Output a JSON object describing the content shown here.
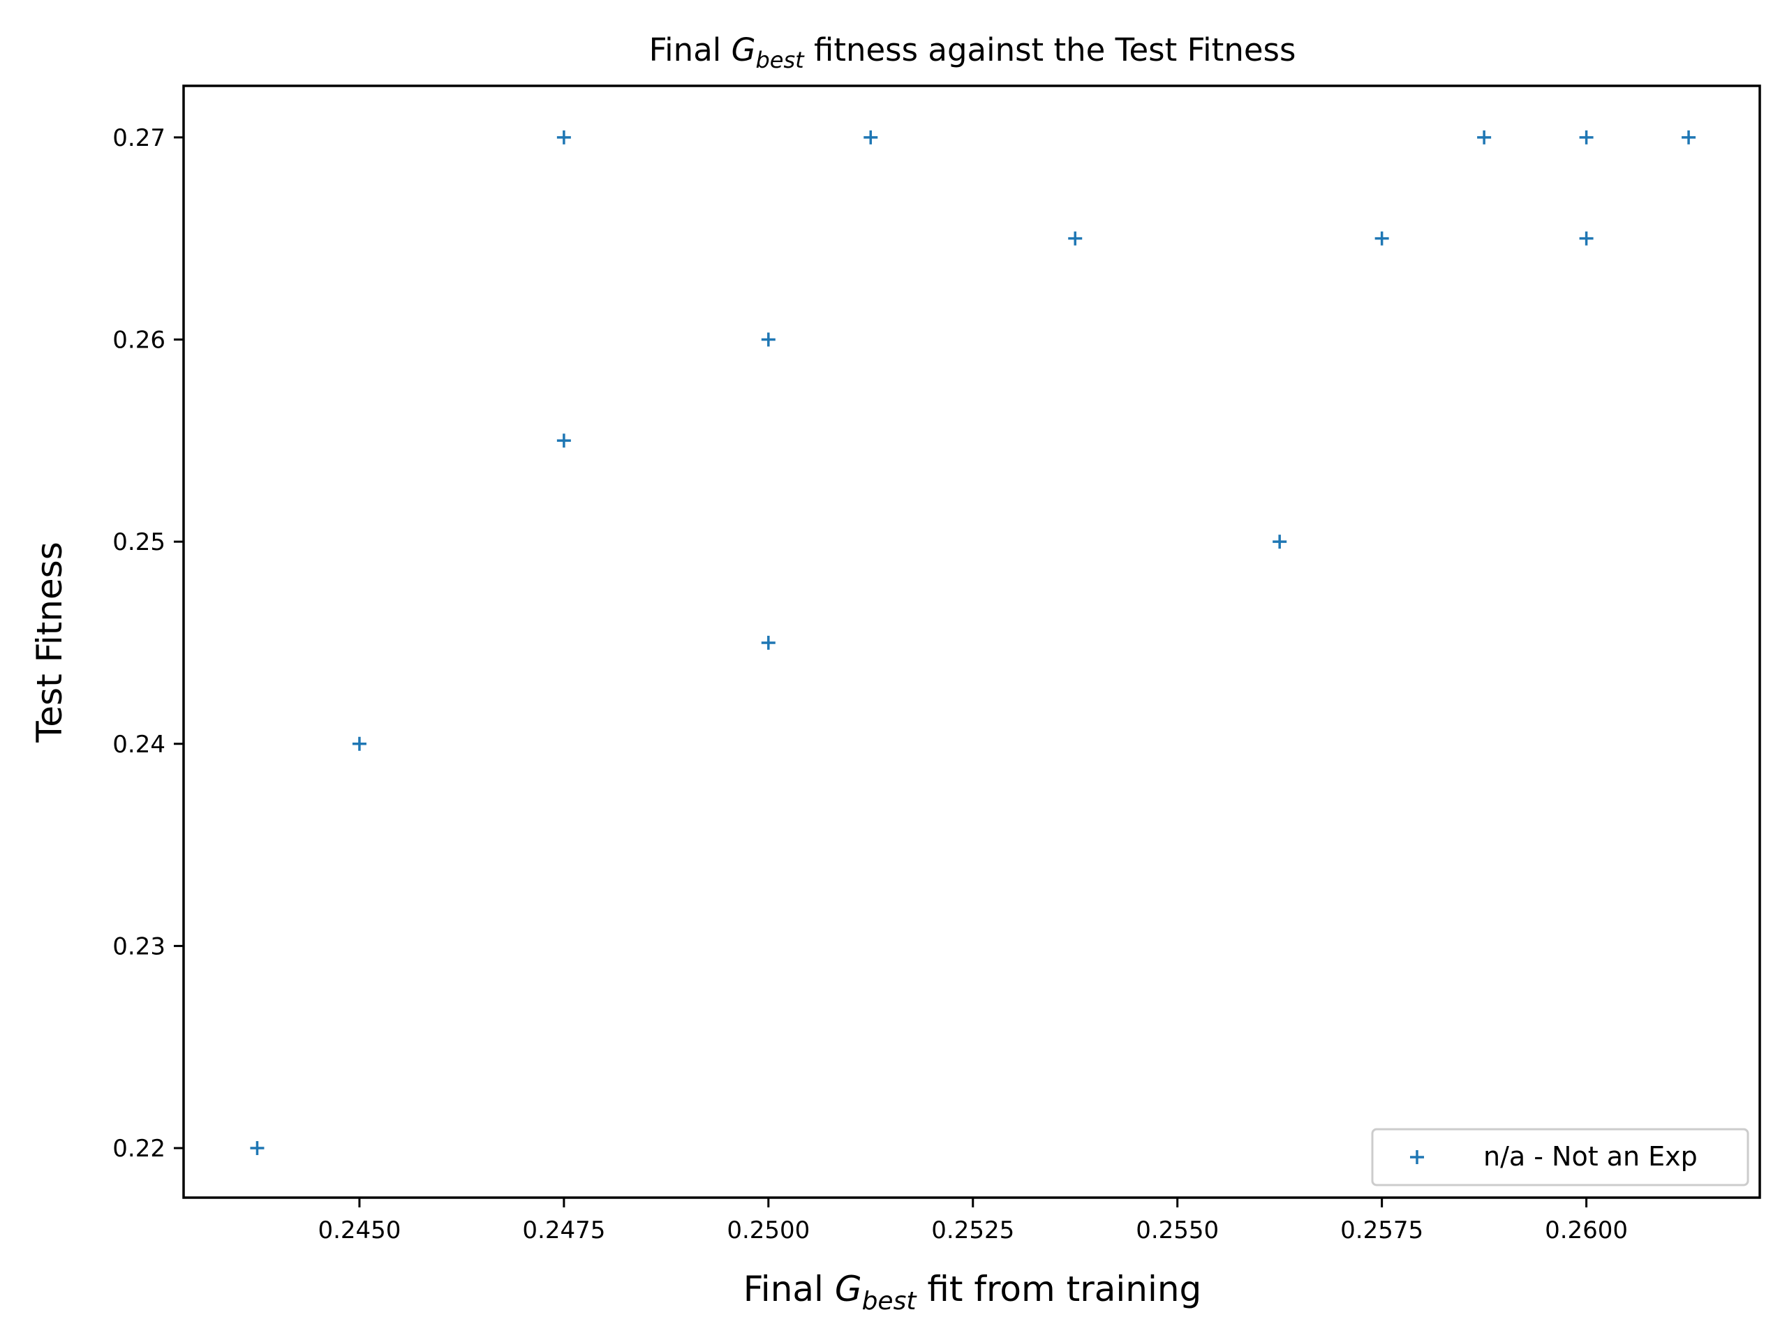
{
  "chart_data": {
    "type": "scatter",
    "title": {
      "prefix": "Final ",
      "symbol": "G",
      "subscript": "best",
      "suffix": " fitness against the Test Fitness"
    },
    "xlabel": {
      "prefix": "Final ",
      "symbol": "G",
      "subscript": "best",
      "suffix": " fit from training"
    },
    "ylabel": "Test Fitness",
    "xlim": [
      0.24285,
      0.26212
    ],
    "ylim": [
      0.21755,
      0.27255
    ],
    "x_ticks": [
      "0.2450",
      "0.2475",
      "0.2500",
      "0.2525",
      "0.2550",
      "0.2575",
      "0.2600"
    ],
    "x_tick_values": [
      0.245,
      0.2475,
      0.25,
      0.2525,
      0.255,
      0.2575,
      0.26
    ],
    "y_ticks": [
      "0.22",
      "0.23",
      "0.24",
      "0.25",
      "0.26",
      "0.27"
    ],
    "y_tick_values": [
      0.22,
      0.23,
      0.24,
      0.25,
      0.26,
      0.27
    ],
    "grid": false,
    "legend_position": "lower right",
    "series": [
      {
        "name": "n/a - Not an Exp",
        "marker": "+",
        "color": "#1f77b4",
        "points": [
          {
            "x": 0.24375,
            "y": 0.22
          },
          {
            "x": 0.245,
            "y": 0.24
          },
          {
            "x": 0.2475,
            "y": 0.27
          },
          {
            "x": 0.2475,
            "y": 0.255
          },
          {
            "x": 0.25,
            "y": 0.26
          },
          {
            "x": 0.25,
            "y": 0.245
          },
          {
            "x": 0.25125,
            "y": 0.27
          },
          {
            "x": 0.25375,
            "y": 0.265
          },
          {
            "x": 0.25625,
            "y": 0.25
          },
          {
            "x": 0.2575,
            "y": 0.265
          },
          {
            "x": 0.25875,
            "y": 0.27
          },
          {
            "x": 0.26,
            "y": 0.27
          },
          {
            "x": 0.26,
            "y": 0.265
          },
          {
            "x": 0.26125,
            "y": 0.27
          }
        ]
      }
    ]
  }
}
